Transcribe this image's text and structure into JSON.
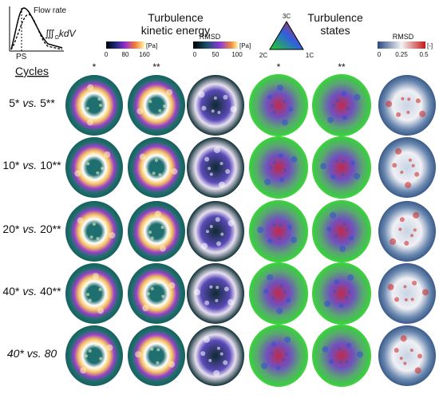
{
  "inset": {
    "flow_label": "Flow rate",
    "ps_label": "PS",
    "integral": "∭",
    "integral_sub": "Ω",
    "integral_text": "kdV"
  },
  "tke": {
    "title": [
      "Turbulence",
      "kinetic energy"
    ],
    "colorbar": {
      "ticks": [
        "0",
        "80",
        "160"
      ],
      "unit": "[Pa]"
    },
    "rmsd": {
      "label": "RMSD",
      "ticks": [
        "0",
        "50",
        "100"
      ],
      "unit": "[Pa]"
    }
  },
  "states": {
    "title": [
      "Turbulence",
      "states"
    ],
    "corners": [
      "3C",
      "2C",
      "1C"
    ],
    "rmsd": {
      "label": "RMSD",
      "ticks": [
        "0",
        "0.25",
        "0.5"
      ],
      "unit": "[-]"
    }
  },
  "column_markers": [
    "*",
    "**",
    "*",
    "**"
  ],
  "rows_header": "Cycles",
  "rows": [
    {
      "left": "5*",
      "vs": "vs.",
      "right": "5**"
    },
    {
      "left": "10*",
      "vs": "vs.",
      "right": "10**"
    },
    {
      "left": "20*",
      "vs": "vs.",
      "right": "20**"
    },
    {
      "left": "40*",
      "vs": "vs.",
      "right": "40**"
    },
    {
      "left": "40*",
      "vs": "vs.",
      "right": "80"
    }
  ]
}
